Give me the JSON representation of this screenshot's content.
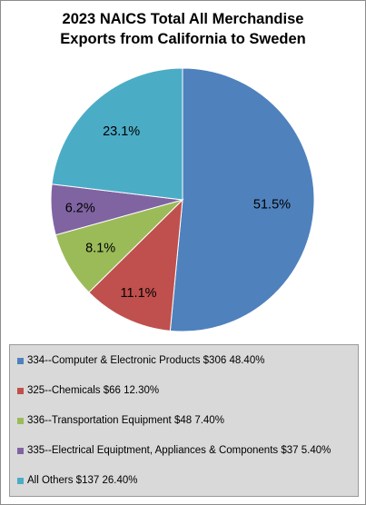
{
  "chart_data": {
    "type": "pie",
    "title_lines": [
      "2023 NAICS Total All Merchandise",
      "Exports from California to Sweden"
    ],
    "slices": [
      {
        "label": "51.5%",
        "value": 51.5,
        "color": "#4f81bd"
      },
      {
        "label": "11.1%",
        "value": 11.1,
        "color": "#c0504d"
      },
      {
        "label": "8.1%",
        "value": 8.1,
        "color": "#9bbb59"
      },
      {
        "label": "6.2%",
        "value": 6.2,
        "color": "#8064a2"
      },
      {
        "label": "23.1%",
        "value": 23.1,
        "color": "#4bacc6"
      }
    ],
    "legend": [
      {
        "text": "334--Computer & Electronic Products $306 48.40%",
        "color": "#4f81bd"
      },
      {
        "text": "325--Chemicals $66 12.30%",
        "color": "#c0504d"
      },
      {
        "text": "336--Transportation Equipment $48 7.40%",
        "color": "#9bbb59"
      },
      {
        "text": "335--Electrical Equiptment, Appliances & Components $37 5.40%",
        "color": "#8064a2"
      },
      {
        "text": "All Others $137 26.40%",
        "color": "#4bacc6"
      }
    ],
    "legend_position": "bottom"
  }
}
